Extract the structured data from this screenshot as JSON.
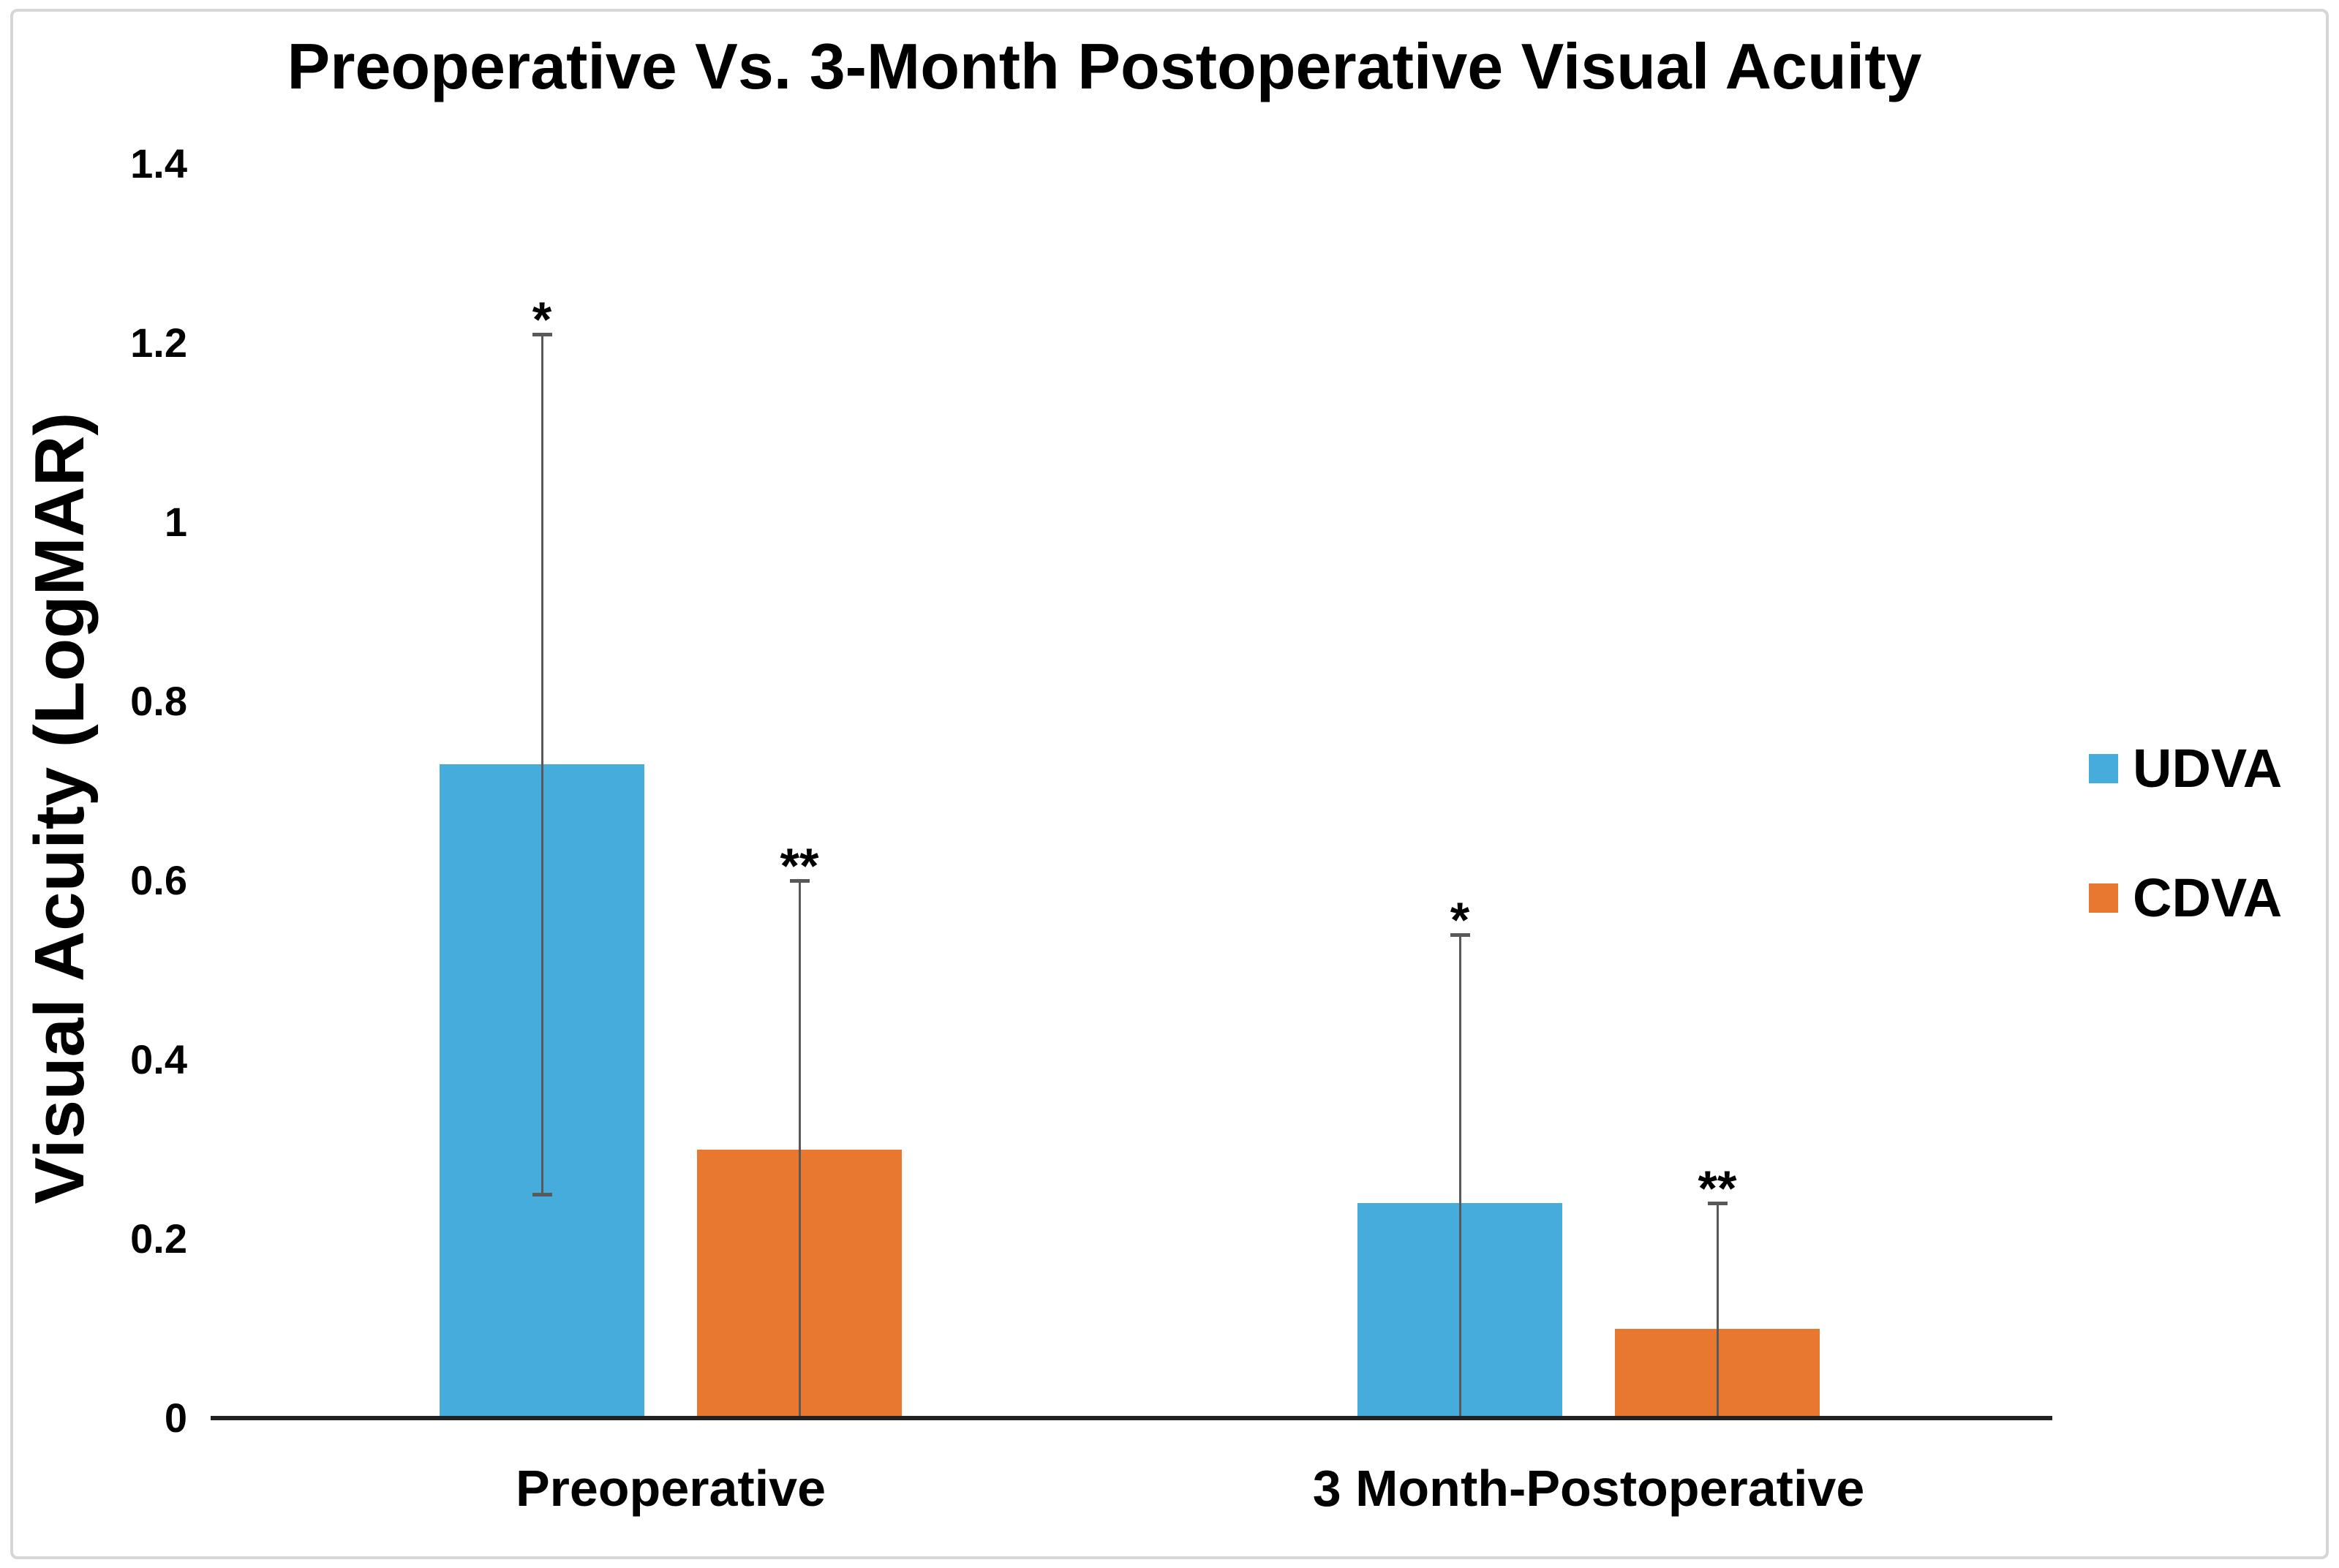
{
  "figure": {
    "title": "Preoperative Vs. 3-Month Postoperative Visual Acuity"
  },
  "chart_data": {
    "type": "bar",
    "title": "Preoperative Vs. 3-Month Postoperative Visual Acuity",
    "xlabel": "",
    "ylabel": "Visual Acuity (LogMAR)",
    "categories": [
      "Preoperative",
      "3 Month-Postoperative"
    ],
    "series": [
      {
        "name": "UDVA",
        "color": "#45ACDC",
        "values": [
          0.73,
          0.24
        ],
        "error_top": [
          1.21,
          0.54
        ],
        "error_bottom": [
          0.25,
          0
        ],
        "significance": [
          "*",
          "*"
        ]
      },
      {
        "name": "CDVA",
        "color": "#E8772F",
        "values": [
          0.3,
          0.1
        ],
        "error_top": [
          0.6,
          0.24
        ],
        "error_bottom": [
          0,
          0
        ],
        "significance": [
          "**",
          "**"
        ]
      }
    ],
    "yticks": [
      {
        "value": 1.4,
        "label": "1.4"
      },
      {
        "value": 1.2,
        "label": "1.2"
      },
      {
        "value": 1.0,
        "label": "1"
      },
      {
        "value": 0.8,
        "label": "0.8"
      },
      {
        "value": 0.6,
        "label": "0.6"
      },
      {
        "value": 0.4,
        "label": "0.4"
      },
      {
        "value": 0.2,
        "label": "0.2"
      },
      {
        "value": 0.0,
        "label": "0"
      }
    ],
    "ylim": [
      0,
      1.4
    ],
    "grid": false,
    "legend_position": "right",
    "error_bar_color": "#595959",
    "axis_color": "#222222"
  }
}
